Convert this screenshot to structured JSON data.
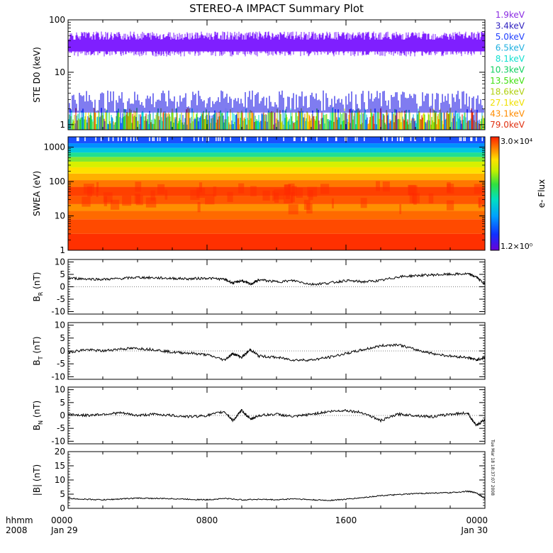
{
  "title": "STEREO-A IMPACT Summary Plot",
  "timestamp": "Tue Mar 18 18:37:07 2008",
  "x_axis": {
    "row1_label": "hhmm",
    "row2_label": "2008",
    "ticks": [
      {
        "time": "0000",
        "date": "Jan 29",
        "t": 0
      },
      {
        "time": "0800",
        "date": "",
        "t": 8
      },
      {
        "time": "1600",
        "date": "",
        "t": 16
      },
      {
        "time": "0000",
        "date": "Jan 30",
        "t": 24
      }
    ]
  },
  "colors": {
    "line": "#000000",
    "ste_high": "#7f1fff",
    "ste_mid": "#2a25e6"
  },
  "chart_data": [
    {
      "type": "line",
      "panel": "ste",
      "ylabel": "STE D0 (keV)",
      "yscale": "log",
      "ylim": [
        0.8,
        100
      ],
      "ytick_labels": [
        "100",
        "10",
        "1"
      ],
      "legend_placement": "right",
      "legend": [
        {
          "name": "1.9keV",
          "color": "#8a2be2"
        },
        {
          "name": "3.4keV",
          "color": "#2d1fbf"
        },
        {
          "name": "5.0keV",
          "color": "#1f3fff"
        },
        {
          "name": "6.5keV",
          "color": "#1fb0e0"
        },
        {
          "name": "8.1keV",
          "color": "#10e0d0"
        },
        {
          "name": "10.3keV",
          "color": "#10d060"
        },
        {
          "name": "13.5keV",
          "color": "#40e010"
        },
        {
          "name": "18.6keV",
          "color": "#b0d010"
        },
        {
          "name": "27.1keV",
          "color": "#f0e000"
        },
        {
          "name": "43.1keV",
          "color": "#ff8c00"
        },
        {
          "name": "79.0keV",
          "color": "#e03010"
        }
      ],
      "series": [
        {
          "name": "1.9keV",
          "values_range": [
            15,
            65
          ],
          "typical": 33
        },
        {
          "name": "3.4keV",
          "values_range": [
            1,
            4.5
          ],
          "typical": 2.5
        }
      ]
    },
    {
      "type": "heatmap",
      "panel": "swea",
      "ylabel": "SWEA (eV)",
      "yscale": "log",
      "ylim": [
        1,
        2000
      ],
      "ytick_labels": [
        "1000",
        "100",
        "10",
        "1"
      ],
      "colorbar": {
        "label": "e- Flux",
        "max": "3.0×10⁴",
        "min": "1.2×10⁰"
      }
    },
    {
      "type": "line",
      "panel": "br",
      "ylabel": "B_R (nT)",
      "ylim": [
        -11,
        11
      ],
      "ytick_labels": [
        "10",
        "5",
        "0",
        "-5",
        "-10"
      ],
      "x": [
        0,
        1,
        2,
        3,
        4,
        5,
        6,
        7,
        8,
        9,
        9.5,
        10,
        10.5,
        11,
        12,
        13,
        14,
        15,
        16,
        17,
        18,
        19,
        20,
        21,
        22,
        23,
        23.5,
        24
      ],
      "values": [
        3.5,
        3.2,
        3.0,
        3.3,
        3.8,
        3.6,
        3.4,
        3.2,
        3.5,
        3.0,
        1.5,
        2.5,
        1.0,
        2.8,
        2.0,
        2.5,
        1.0,
        1.5,
        2.5,
        2.0,
        2.5,
        4.0,
        4.5,
        4.8,
        5.0,
        5.2,
        4.0,
        1.0
      ]
    },
    {
      "type": "line",
      "panel": "bt",
      "ylabel": "B_T (nT)",
      "ylim": [
        -11,
        11
      ],
      "ytick_labels": [
        "10",
        "5",
        "0",
        "-5",
        "-10"
      ],
      "x": [
        0,
        1,
        2,
        3,
        4,
        5,
        6,
        7,
        8,
        9,
        9.5,
        10,
        10.5,
        11,
        12,
        13,
        14,
        15,
        16,
        17,
        18,
        19,
        20,
        21,
        22,
        23,
        23.5,
        24
      ],
      "values": [
        -0.5,
        0.5,
        0.0,
        0.8,
        1.0,
        0.5,
        -0.5,
        -0.8,
        -1.5,
        -3.5,
        -1.0,
        -2.5,
        0.5,
        -2.0,
        -2.5,
        -3.5,
        -3.5,
        -2.5,
        -1.0,
        0.5,
        2.0,
        2.5,
        0.5,
        -1.0,
        -2.0,
        -2.5,
        -3.5,
        -2.5
      ]
    },
    {
      "type": "line",
      "panel": "bn",
      "ylabel": "B_N (nT)",
      "ylim": [
        -11,
        11
      ],
      "ytick_labels": [
        "10",
        "5",
        "0",
        "-5",
        "-10"
      ],
      "x": [
        0,
        1,
        2,
        3,
        4,
        5,
        6,
        7,
        8,
        9,
        9.5,
        10,
        10.5,
        11,
        12,
        13,
        14,
        15,
        16,
        17,
        18,
        19,
        20,
        21,
        22,
        23,
        23.5,
        24
      ],
      "values": [
        0.5,
        0.0,
        0.5,
        1.0,
        0.0,
        0.5,
        0.0,
        -0.5,
        0.0,
        1.5,
        -2.0,
        2.0,
        -1.5,
        0.0,
        0.5,
        -0.5,
        0.5,
        1.5,
        2.0,
        1.0,
        -2.0,
        0.5,
        0.0,
        -0.5,
        0.5,
        1.0,
        -4.0,
        -1.5
      ]
    },
    {
      "type": "line",
      "panel": "bmag",
      "ylabel": "|B| (nT)",
      "ylim": [
        0,
        20
      ],
      "ytick_labels": [
        "20",
        "15",
        "10",
        "5",
        "0"
      ],
      "x": [
        0,
        1,
        2,
        3,
        4,
        5,
        6,
        7,
        8,
        9,
        10,
        11,
        12,
        13,
        14,
        15,
        16,
        17,
        18,
        19,
        20,
        21,
        22,
        23,
        23.5,
        24
      ],
      "values": [
        3.5,
        3.2,
        3.0,
        3.3,
        3.6,
        3.5,
        3.4,
        3.2,
        3.0,
        3.5,
        3.0,
        3.2,
        3.0,
        3.4,
        3.0,
        2.8,
        3.2,
        3.8,
        4.5,
        4.8,
        5.2,
        5.4,
        5.5,
        6.0,
        5.5,
        3.5
      ]
    }
  ]
}
